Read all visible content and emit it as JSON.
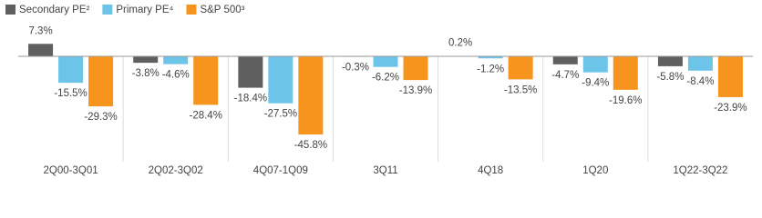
{
  "chart_data": {
    "type": "bar",
    "categories": [
      "2Q00-3Q01",
      "2Q02-3Q02",
      "4Q07-1Q09",
      "3Q11",
      "4Q18",
      "1Q20",
      "1Q22-3Q22"
    ],
    "series": [
      {
        "name": "Secondary PE²",
        "color": "#5f5f5f",
        "values": [
          7.3,
          -3.8,
          -18.4,
          -0.3,
          0.2,
          -4.7,
          -5.8
        ],
        "value_labels": [
          "7.3%",
          "-3.8%",
          "-18.4%",
          "-0.3%",
          "0.2%",
          "-4.7%",
          "-5.8%"
        ]
      },
      {
        "name": "Primary PE⁴",
        "color": "#6cc4e8",
        "values": [
          -15.5,
          -4.6,
          -27.5,
          -6.2,
          -1.2,
          -9.4,
          -8.4
        ],
        "value_labels": [
          "-15.5%",
          "-4.6%",
          "-27.5%",
          "-6.2%",
          "-1.2%",
          "-9.4%",
          "-8.4%"
        ]
      },
      {
        "name": "S&P 500³",
        "color": "#f7941d",
        "values": [
          -29.3,
          -28.4,
          -45.8,
          -13.9,
          -13.5,
          -19.6,
          -23.9
        ],
        "value_labels": [
          "-29.3%",
          "-28.4%",
          "-45.8%",
          "-13.9%",
          "-13.5%",
          "-19.6%",
          "-23.9%"
        ]
      }
    ],
    "legend": "top-left"
  }
}
